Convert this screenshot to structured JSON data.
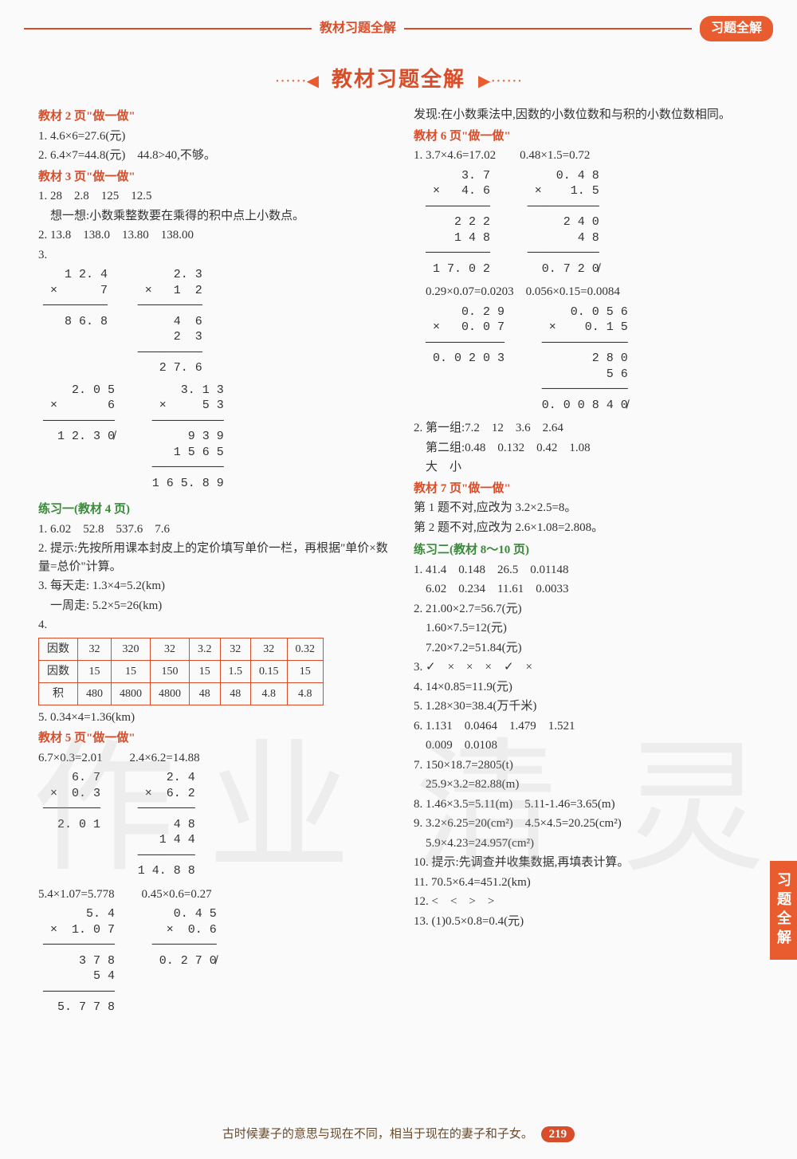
{
  "header": {
    "center": "教材习题全解",
    "pill": "习题全解"
  },
  "title": "教材习题全解",
  "left": {
    "s1": {
      "head": "教材 2 页\"做一做\"",
      "l1": "1. 4.6×6=27.6(元)",
      "l2": "2. 6.4×7=44.8(元)　44.8>40,不够。"
    },
    "s2": {
      "head": "教材 3 页\"做一做\"",
      "l1": "1. 28　2.8　125　12.5",
      "l1b": "　想一想:小数乘整数要在乘得的积中点上小数点。",
      "l2": "2. 13.8　138.0　13.80　138.00",
      "l3": "3."
    },
    "calc_1_24": "  1 2. 4\n×      7\n─────────\n  8 6. 8",
    "calc_2_3": "    2. 3\n×   1  2\n─────────\n    4  6\n  2  3\n─────────\n  2 7. 6",
    "calc_2_05": "   2. 0 5\n×       6\n──────────\n  1 2. 3 0̸",
    "calc_3_13": "   3. 1 3\n×     5 3\n──────────\n    9 3 9\n 1 5 6 5\n──────────\n 1 6 5. 8 9",
    "s3": {
      "head": "练习一(教材 4 页)",
      "l1": "1. 6.02　52.8　537.6　7.6",
      "l2": "2. 提示:先按所用课本封皮上的定价填写单价一栏，再根据\"单价×数量=总价\"计算。",
      "l3": "3. 每天走: 1.3×4=5.2(km)",
      "l3b": "　一周走: 5.2×5=26(km)",
      "l4": "4.",
      "l5": "5. 0.34×4=1.36(km)"
    },
    "table": {
      "h1": "因数",
      "h2": "因数",
      "h3": "积",
      "r1": [
        "32",
        "320",
        "32",
        "3.2",
        "32",
        "32",
        "0.32"
      ],
      "r2": [
        "15",
        "15",
        "150",
        "15",
        "1.5",
        "0.15",
        "15"
      ],
      "r3": [
        "480",
        "4800",
        "4800",
        "48",
        "48",
        "4.8",
        "4.8"
      ]
    },
    "s4": {
      "head": "教材 5 页\"做一做\"",
      "eq1": "6.7×0.3=2.01",
      "eq2": "2.4×6.2=14.88"
    },
    "calc_6_7": "  6. 7\n×  0. 3\n────────\n  2. 0 1",
    "calc_2_4": "   2. 4\n×  6. 2\n────────\n    4 8\n  1 4 4\n────────\n 1 4. 8 8",
    "eq3": "5.4×1.07=5.778",
    "eq4": "0.45×0.6=0.27",
    "calc_5_4": "    5. 4\n×  1. 0 7\n──────────\n    3 7 8\n  5 4\n──────────\n  5. 7 7 8",
    "calc_0_45": "  0. 4 5\n×  0. 6\n─────────\n  0. 2 7 0̸"
  },
  "right": {
    "top": "发现:在小数乘法中,因数的小数位数和与积的小数位数相同。",
    "s1": {
      "head": "教材 6 页\"做一做\"",
      "l1": "1. 3.7×4.6=17.02　　0.48×1.5=0.72"
    },
    "calc_3_7": "    3. 7\n×   4. 6\n─────────\n   2 2 2\n  1 4 8\n─────────\n  1 7. 0 2",
    "calc_0_48": "   0. 4 8\n×    1. 5\n──────────\n    2 4 0\n   4 8\n──────────\n   0. 7 2 0̸",
    "l1b": "　0.29×0.07=0.0203　0.056×0.15=0.0084",
    "calc_0_29": "    0. 2 9\n×   0. 0 7\n───────────\n  0. 0 2 0 3",
    "calc_0_056": "   0. 0 5 6\n×    0. 1 5\n────────────\n     2 8 0\n    5 6\n────────────\n 0. 0 0 8 4 0̸",
    "l2a": "2. 第一组:7.2　12　3.6　2.64",
    "l2b": "　第二组:0.48　0.132　0.42　1.08",
    "l2c": "　大　小",
    "s2": {
      "head": "教材 7 页\"做一做\"",
      "l1": "第 1 题不对,应改为 3.2×2.5=8。",
      "l2": "第 2 题不对,应改为 2.6×1.08=2.808。"
    },
    "s3": {
      "head": "练习二(教材 8～10 页)",
      "l1": "1. 41.4　0.148　26.5　0.01148",
      "l1b": "　6.02　0.234　11.61　0.0033",
      "l2": "2. 21.00×2.7=56.7(元)",
      "l2b": "　1.60×7.5=12(元)",
      "l2c": "　7.20×7.2=51.84(元)",
      "l3": "3. ✓　×　×　×　✓　×",
      "l4": "4. 14×0.85=11.9(元)",
      "l5": "5. 1.28×30=38.4(万千米)",
      "l6": "6. 1.131　0.0464　1.479　1.521",
      "l6b": "　0.009　0.0108",
      "l7": "7. 150×18.7=2805(t)",
      "l7b": "　25.9×3.2=82.88(m)",
      "l8": "8. 1.46×3.5=5.11(m)　5.11-1.46=3.65(m)",
      "l9": "9. 3.2×6.25=20(cm²)　4.5×4.5=20.25(cm²)",
      "l9b": "　5.9×4.23=24.957(cm²)",
      "l10": "10. 提示:先调查并收集数据,再填表计算。",
      "l11": "11. 70.5×6.4=451.2(km)",
      "l12": "12. <　<　>　>",
      "l13": "13. (1)0.5×0.8=0.4(元)"
    }
  },
  "side_tab": "习题全解",
  "footer": {
    "text": "古时候妻子的意思与现在不同，相当于现在的妻子和子女。",
    "page": "219"
  },
  "watermark": {
    "c1": "作",
    "c2": "业",
    "c3": "清",
    "c4": "灵"
  }
}
